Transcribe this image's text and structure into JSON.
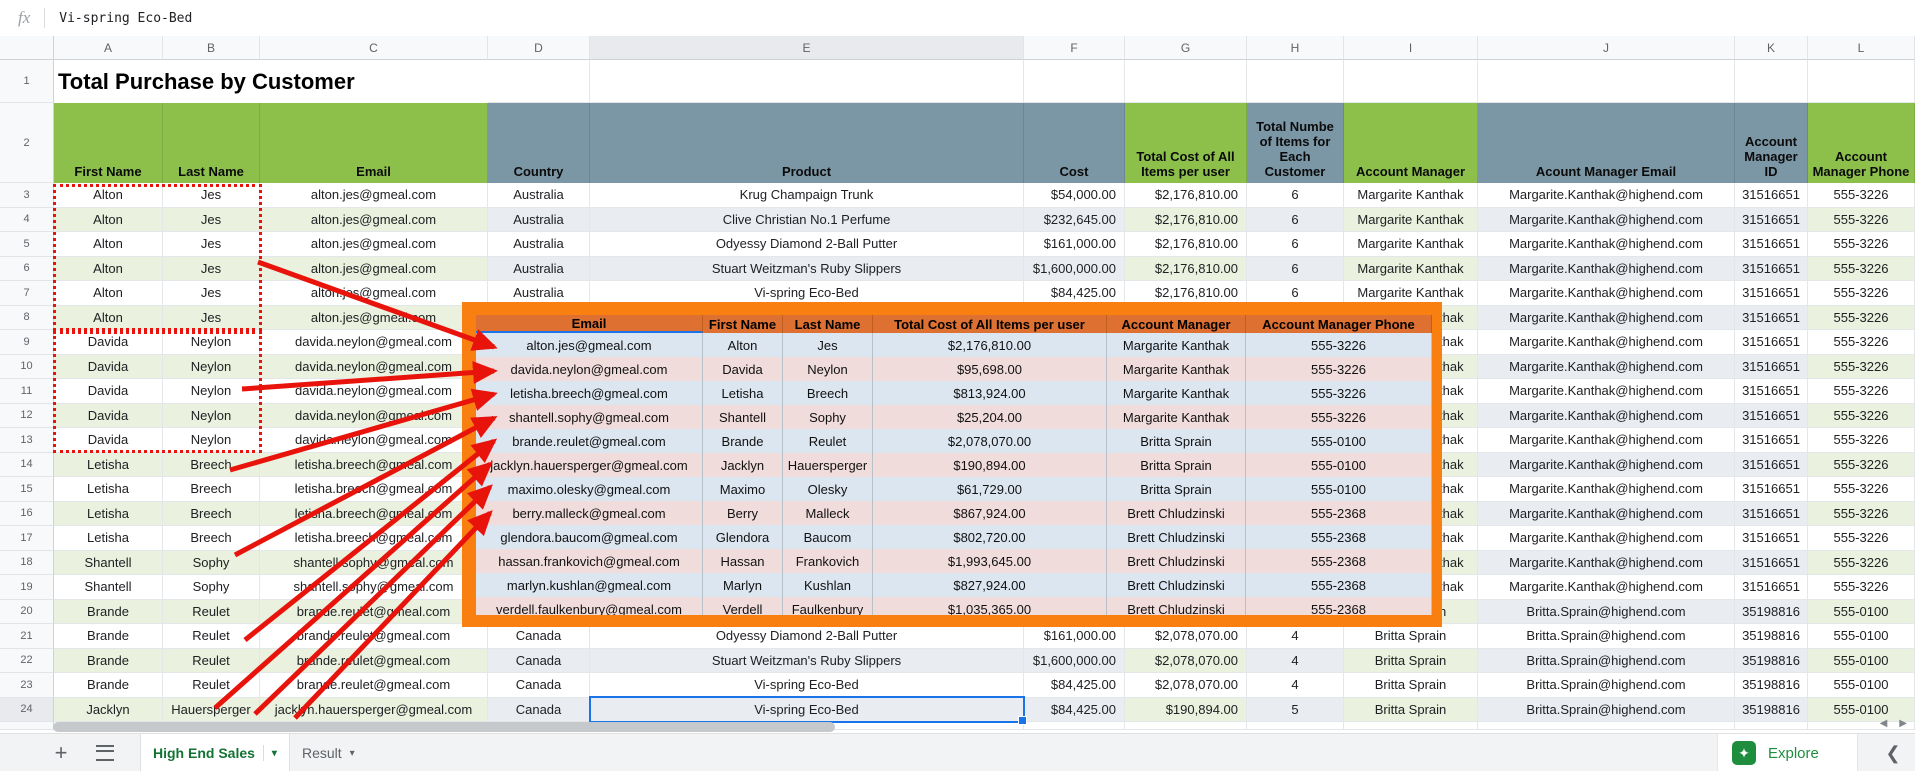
{
  "formula_bar": {
    "fx_label": "fx",
    "value": "Vi-spring Eco-Bed"
  },
  "colors": {
    "header_green": "#8DC04B",
    "header_slate": "#7B96A4",
    "band_green": "#EAF1DE",
    "band_slate": "#E9EDF1",
    "overlay_border": "#F87F10",
    "overlay_header": "#DE7031",
    "overlay_band_blue": "#DCE6F1",
    "overlay_band_pink": "#F0DCDB",
    "annotation_red": "#E8140C",
    "selection_blue": "#1A73E8",
    "tab_active_green": "#137333",
    "explore_green": "#1E8E3E"
  },
  "sheet": {
    "title": "Total Purchase by Customer",
    "column_letters": [
      "A",
      "B",
      "C",
      "D",
      "E",
      "F",
      "G",
      "H",
      "I",
      "J",
      "K",
      "L"
    ],
    "selected_column": "E",
    "selected_row": 24,
    "header_row": [
      {
        "label": "First Name",
        "scheme": "green"
      },
      {
        "label": "Last Name",
        "scheme": "green"
      },
      {
        "label": "Email",
        "scheme": "green"
      },
      {
        "label": "Country",
        "scheme": "slate"
      },
      {
        "label": "Product",
        "scheme": "slate"
      },
      {
        "label": "Cost",
        "scheme": "slate"
      },
      {
        "label": "Total Cost of All Items per user",
        "scheme": "green"
      },
      {
        "label": "Total Numbe of Items for Each Customer",
        "scheme": "slate"
      },
      {
        "label": "Account Manager",
        "scheme": "green"
      },
      {
        "label": "Acount Manager Email",
        "scheme": "slate"
      },
      {
        "label": "Account Manager ID",
        "scheme": "slate"
      },
      {
        "label": "Account Manager Phone",
        "scheme": "green"
      }
    ],
    "rows": [
      {
        "n": 3,
        "cells": [
          "Alton",
          "Jes",
          "alton.jes@gmeal.com",
          "Australia",
          "Krug Champaign Trunk",
          "$54,000.00",
          "$2,176,810.00",
          "6",
          "Margarite Kanthak",
          "Margarite.Kanthak@highend.com",
          "31516651",
          "555-3226"
        ]
      },
      {
        "n": 4,
        "cells": [
          "Alton",
          "Jes",
          "alton.jes@gmeal.com",
          "Australia",
          "Clive Christian No.1 Perfume",
          "$232,645.00",
          "$2,176,810.00",
          "6",
          "Margarite Kanthak",
          "Margarite.Kanthak@highend.com",
          "31516651",
          "555-3226"
        ]
      },
      {
        "n": 5,
        "cells": [
          "Alton",
          "Jes",
          "alton.jes@gmeal.com",
          "Australia",
          "Odyessy Diamond 2-Ball Putter",
          "$161,000.00",
          "$2,176,810.00",
          "6",
          "Margarite Kanthak",
          "Margarite.Kanthak@highend.com",
          "31516651",
          "555-3226"
        ]
      },
      {
        "n": 6,
        "cells": [
          "Alton",
          "Jes",
          "alton.jes@gmeal.com",
          "Australia",
          "Stuart Weitzman's Ruby Slippers",
          "$1,600,000.00",
          "$2,176,810.00",
          "6",
          "Margarite Kanthak",
          "Margarite.Kanthak@highend.com",
          "31516651",
          "555-3226"
        ]
      },
      {
        "n": 7,
        "cells": [
          "Alton",
          "Jes",
          "alton.jes@gmeal.com",
          "Australia",
          "Vi-spring Eco-Bed",
          "$84,425.00",
          "$2,176,810.00",
          "6",
          "Margarite Kanthak",
          "Margarite.Kanthak@highend.com",
          "31516651",
          "555-3226"
        ]
      },
      {
        "n": 8,
        "cells": [
          "Alton",
          "Jes",
          "alton.jes@gmeal.com",
          "",
          "",
          "",
          "",
          "",
          "Margarite Kanthak",
          "Margarite.Kanthak@highend.com",
          "31516651",
          "555-3226"
        ]
      },
      {
        "n": 9,
        "cells": [
          "Davida",
          "Neylon",
          "davida.neylon@gmeal.com",
          "",
          "",
          "",
          "",
          "",
          "Margarite Kanthak",
          "Margarite.Kanthak@highend.com",
          "31516651",
          "555-3226"
        ]
      },
      {
        "n": 10,
        "cells": [
          "Davida",
          "Neylon",
          "davida.neylon@gmeal.com",
          "",
          "",
          "",
          "",
          "",
          "Margarite Kanthak",
          "Margarite.Kanthak@highend.com",
          "31516651",
          "555-3226"
        ]
      },
      {
        "n": 11,
        "cells": [
          "Davida",
          "Neylon",
          "davida.neylon@gmeal.com",
          "",
          "",
          "",
          "",
          "",
          "Margarite Kanthak",
          "Margarite.Kanthak@highend.com",
          "31516651",
          "555-3226"
        ]
      },
      {
        "n": 12,
        "cells": [
          "Davida",
          "Neylon",
          "davida.neylon@gmeal.com",
          "",
          "",
          "",
          "",
          "",
          "Margarite Kanthak",
          "Margarite.Kanthak@highend.com",
          "31516651",
          "555-3226"
        ]
      },
      {
        "n": 13,
        "cells": [
          "Davida",
          "Neylon",
          "davida.neylon@gmeal.com",
          "",
          "",
          "",
          "",
          "",
          "Margarite Kanthak",
          "Margarite.Kanthak@highend.com",
          "31516651",
          "555-3226"
        ]
      },
      {
        "n": 14,
        "cells": [
          "Letisha",
          "Breech",
          "letisha.breech@gmeal.com",
          "",
          "",
          "",
          "",
          "",
          "Margarite Kanthak",
          "Margarite.Kanthak@highend.com",
          "31516651",
          "555-3226"
        ]
      },
      {
        "n": 15,
        "cells": [
          "Letisha",
          "Breech",
          "letisha.breech@gmeal.com",
          "",
          "",
          "",
          "",
          "",
          "Margarite Kanthak",
          "Margarite.Kanthak@highend.com",
          "31516651",
          "555-3226"
        ]
      },
      {
        "n": 16,
        "cells": [
          "Letisha",
          "Breech",
          "letisha.breech@gmeal.com",
          "",
          "",
          "",
          "",
          "",
          "Margarite Kanthak",
          "Margarite.Kanthak@highend.com",
          "31516651",
          "555-3226"
        ]
      },
      {
        "n": 17,
        "cells": [
          "Letisha",
          "Breech",
          "letisha.breech@gmeal.com",
          "",
          "",
          "",
          "",
          "",
          "Margarite Kanthak",
          "Margarite.Kanthak@highend.com",
          "31516651",
          "555-3226"
        ]
      },
      {
        "n": 18,
        "cells": [
          "Shantell",
          "Sophy",
          "shantell.sophy@gmeal.com",
          "",
          "",
          "",
          "",
          "",
          "Margarite Kanthak",
          "Margarite.Kanthak@highend.com",
          "31516651",
          "555-3226"
        ]
      },
      {
        "n": 19,
        "cells": [
          "Shantell",
          "Sophy",
          "shantell.sophy@gmeal.com",
          "",
          "",
          "",
          "",
          "",
          "Margarite Kanthak",
          "Margarite.Kanthak@highend.com",
          "31516651",
          "555-3226"
        ]
      },
      {
        "n": 20,
        "cells": [
          "Brande",
          "Reulet",
          "brande.reulet@gmeal.com",
          "",
          "",
          "",
          "",
          "",
          "Britta Sprain",
          "Britta.Sprain@highend.com",
          "35198816",
          "555-0100"
        ]
      },
      {
        "n": 21,
        "cells": [
          "Brande",
          "Reulet",
          "brande.reulet@gmeal.com",
          "Canada",
          "Odyessy Diamond 2-Ball Putter",
          "$161,000.00",
          "$2,078,070.00",
          "4",
          "Britta Sprain",
          "Britta.Sprain@highend.com",
          "35198816",
          "555-0100"
        ]
      },
      {
        "n": 22,
        "cells": [
          "Brande",
          "Reulet",
          "brande.reulet@gmeal.com",
          "Canada",
          "Stuart Weitzman's Ruby Slippers",
          "$1,600,000.00",
          "$2,078,070.00",
          "4",
          "Britta Sprain",
          "Britta.Sprain@highend.com",
          "35198816",
          "555-0100"
        ]
      },
      {
        "n": 23,
        "cells": [
          "Brande",
          "Reulet",
          "brande.reulet@gmeal.com",
          "Canada",
          "Vi-spring Eco-Bed",
          "$84,425.00",
          "$2,078,070.00",
          "4",
          "Britta Sprain",
          "Britta.Sprain@highend.com",
          "35198816",
          "555-0100"
        ]
      },
      {
        "n": 24,
        "cells": [
          "Jacklyn",
          "Hauersperger",
          "jacklyn.hauersperger@gmeal.com",
          "Canada",
          "Vi-spring Eco-Bed",
          "$84,425.00",
          "$190,894.00",
          "5",
          "Britta Sprain",
          "Britta.Sprain@highend.com",
          "35198816",
          "555-0100"
        ]
      }
    ]
  },
  "overlay": {
    "headers": [
      "Email",
      "First Name",
      "Last Name",
      "Total Cost of All Items per user",
      "Account Manager",
      "Account Manager Phone"
    ],
    "rows": [
      [
        "alton.jes@gmeal.com",
        "Alton",
        "Jes",
        "$2,176,810.00",
        "Margarite Kanthak",
        "555-3226"
      ],
      [
        "davida.neylon@gmeal.com",
        "Davida",
        "Neylon",
        "$95,698.00",
        "Margarite Kanthak",
        "555-3226"
      ],
      [
        "letisha.breech@gmeal.com",
        "Letisha",
        "Breech",
        "$813,924.00",
        "Margarite Kanthak",
        "555-3226"
      ],
      [
        "shantell.sophy@gmeal.com",
        "Shantell",
        "Sophy",
        "$25,204.00",
        "Margarite Kanthak",
        "555-3226"
      ],
      [
        "brande.reulet@gmeal.com",
        "Brande",
        "Reulet",
        "$2,078,070.00",
        "Britta Sprain",
        "555-0100"
      ],
      [
        "jacklyn.hauersperger@gmeal.com",
        "Jacklyn",
        "Hauersperger",
        "$190,894.00",
        "Britta Sprain",
        "555-0100"
      ],
      [
        "maximo.olesky@gmeal.com",
        "Maximo",
        "Olesky",
        "$61,729.00",
        "Britta Sprain",
        "555-0100"
      ],
      [
        "berry.malleck@gmeal.com",
        "Berry",
        "Malleck",
        "$867,924.00",
        "Brett Chludzinski",
        "555-2368"
      ],
      [
        "glendora.baucom@gmeal.com",
        "Glendora",
        "Baucom",
        "$802,720.00",
        "Brett Chludzinski",
        "555-2368"
      ],
      [
        "hassan.frankovich@gmeal.com",
        "Hassan",
        "Frankovich",
        "$1,993,645.00",
        "Brett Chludzinski",
        "555-2368"
      ],
      [
        "marlyn.kushlan@gmeal.com",
        "Marlyn",
        "Kushlan",
        "$827,924.00",
        "Brett Chludzinski",
        "555-2368"
      ],
      [
        "verdell.faulkenbury@gmeal.com",
        "Verdell",
        "Faulkenbury",
        "$1,035,365.00",
        "Brett Chludzinski",
        "555-2368"
      ]
    ]
  },
  "bottom_bar": {
    "tabs": [
      {
        "label": "High End Sales",
        "active": true
      },
      {
        "label": "Result",
        "active": false
      }
    ],
    "add_sheet_label": "+",
    "explore_label": "Explore",
    "collapse_label": "❮"
  }
}
